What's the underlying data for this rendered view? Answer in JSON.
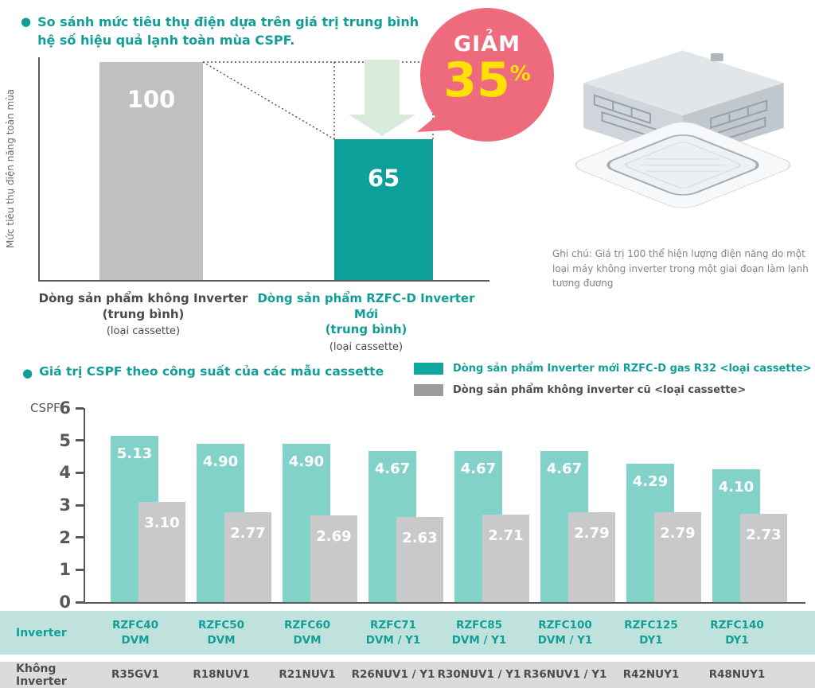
{
  "colors": {
    "teal_accent": "#129e98",
    "teal_bar_dark": "#0d9f99",
    "teal_bar_light": "#83d2ca",
    "gray_bar_top": "#c1c1c1",
    "gray_bar_bottom": "#c9c9c9",
    "legend_teal": "#10a89e",
    "legend_gray": "#9b9b9b",
    "badge_pink": "#ed6b7c",
    "badge_yellow": "#ffe104",
    "arrow_green": "#d8ecdc",
    "table_row1_bg": "#bfe3dc",
    "table_row2_bg": "#dbdbdb",
    "axis_dark": "#58595b"
  },
  "section1": {
    "title_line1": "So sánh mức tiêu thụ điện dựa trên giá trị trung bình",
    "title_line2": "hệ số hiệu quả lạnh toàn mùa CSPF.",
    "bullet": "●",
    "y_axis_label": "Mức tiêu thụ điện năng toàn mùa",
    "badge": {
      "word": "GIẢM",
      "number": "35",
      "percent": "%"
    },
    "bars": [
      {
        "line1": "Dòng sản phẩm không Inverter",
        "line2": "(trung bình)",
        "sub": "(loại cassette)"
      },
      {
        "line1": "Dòng sản phẩm RZFC-D Inverter Mới",
        "line2": "(trung bình)",
        "sub": "(loại cassette)"
      }
    ],
    "note": "Ghi chú: Giá trị 100 thể hiện lượng điện năng do một loại máy không inverter trong một giai đoạn làm lạnh tương đương"
  },
  "section2": {
    "title": "Giá trị CSPF theo công suất của các mẫu cassette",
    "bullet": "●",
    "legend": [
      {
        "label": "Dòng sản phẩm Inverter mới RZFC-D gas R32 <loại cassette>",
        "color": "#10a89e",
        "text_color": "#129e98"
      },
      {
        "label": "Dòng sản phẩm không inverter cũ <loại cassette>",
        "color": "#9b9b9b",
        "text_color": "#4d4d4d"
      }
    ],
    "table": {
      "rows": [
        {
          "header": "Inverter",
          "cells": [
            "RZFC40\nDVM",
            "RZFC50\nDVM",
            "RZFC60\nDVM",
            "RZFC71\nDVM / Y1",
            "RZFC85\nDVM / Y1",
            "RZFC100\nDVM / Y1",
            "RZFC125\nDY1",
            "RZFC140\nDY1"
          ]
        },
        {
          "header": "Không Inverter",
          "cells": [
            "R35GV1",
            "R18NUV1",
            "R21NUV1",
            "R26NUV1 / Y1",
            "R30NUV1 / Y1",
            "R36NUV1 / Y1",
            "R42NUY1",
            "R48NUY1"
          ]
        }
      ]
    }
  },
  "chart_data": [
    {
      "type": "bar",
      "title": "So sánh mức tiêu thụ điện dựa trên giá trị trung bình hệ số hiệu quả lạnh toàn mùa CSPF.",
      "ylabel": "Mức tiêu thụ điện năng toàn mùa",
      "xlabel": "",
      "categories": [
        "Dòng sản phẩm không Inverter (trung bình) (loại cassette)",
        "Dòng sản phẩm RZFC-D Inverter Mới (trung bình) (loại cassette)"
      ],
      "values": [
        100,
        65
      ],
      "annotation": "GIẢM 35%",
      "grid": false,
      "bar_colors": [
        "#c1c1c1",
        "#0d9f99"
      ]
    },
    {
      "type": "bar",
      "title": "Giá trị CSPF theo công suất của các mẫu cassette",
      "ylabel": "CSPF",
      "xlabel": "",
      "ylim": [
        0,
        6
      ],
      "ytick_step": 1,
      "grid": false,
      "legend_position": "top-right",
      "categories": [
        "RZFC40 DVM",
        "RZFC50 DVM",
        "RZFC60 DVM",
        "RZFC71 DVM / Y1",
        "RZFC85 DVM / Y1",
        "RZFC100 DVM / Y1",
        "RZFC125 DY1",
        "RZFC140 DY1"
      ],
      "series": [
        {
          "name": "Dòng sản phẩm Inverter mới RZFC-D gas R32 <loại cassette>",
          "color": "#83d2ca",
          "values": [
            5.13,
            4.9,
            4.9,
            4.67,
            4.67,
            4.67,
            4.29,
            4.1
          ],
          "labels": [
            "5.13",
            "4.90",
            "4.90",
            "4.67",
            "4.67",
            "4.67",
            "4.29",
            "4.10"
          ]
        },
        {
          "name": "Dòng sản phẩm không inverter cũ <loại cassette>",
          "color": "#c9c9c9",
          "values": [
            3.1,
            2.77,
            2.69,
            2.63,
            2.71,
            2.79,
            2.79,
            2.73
          ],
          "labels": [
            "3.10",
            "2.77",
            "2.69",
            "2.63",
            "2.71",
            "2.79",
            "2.79",
            "2.73"
          ]
        }
      ]
    }
  ]
}
